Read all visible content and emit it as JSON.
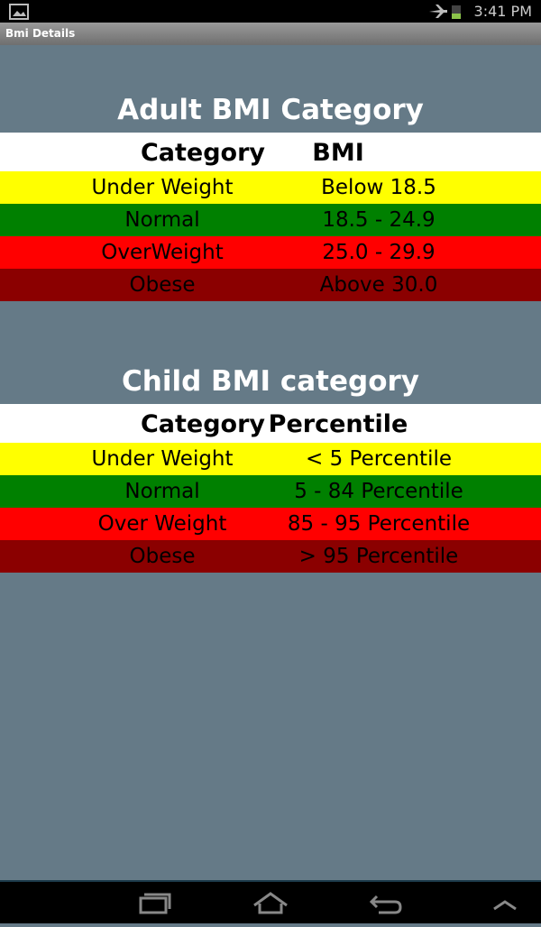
{
  "status_bar": {
    "time": "3:41 PM"
  },
  "app_bar": {
    "title": "Bmi Details"
  },
  "sections": [
    {
      "title": "Adult BMI Category",
      "header": [
        "Category",
        "BMI"
      ],
      "rows": [
        [
          "Under Weight",
          "Below 18.5"
        ],
        [
          "Normal",
          "18.5 - 24.9"
        ],
        [
          "OverWeight",
          "25.0 - 29.9"
        ],
        [
          "Obese",
          "Above 30.0"
        ]
      ]
    },
    {
      "title": "Child BMI category",
      "header": [
        "Category",
        "Percentile"
      ],
      "rows": [
        [
          "Under Weight",
          "< 5 Percentile"
        ],
        [
          "Normal",
          "5 - 84 Percentile"
        ],
        [
          "Over Weight",
          "85 - 95 Percentile"
        ],
        [
          "Obese",
          "> 95 Percentile"
        ]
      ]
    }
  ]
}
